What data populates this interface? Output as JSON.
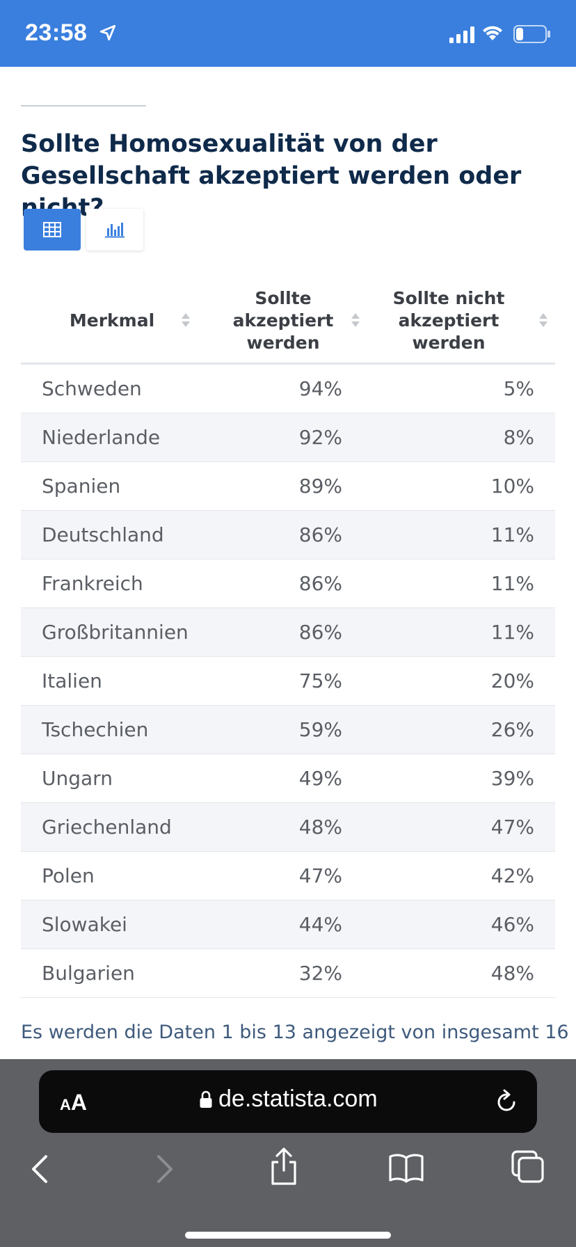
{
  "status_bar": {
    "time": "23:58",
    "battery_level": 0.25
  },
  "page": {
    "title": "Sollte Homosexualität von der Gesellschaft akzeptiert werden oder nicht?",
    "table": {
      "headers": [
        "Merkmal",
        "Sollte akzeptiert werden",
        "Sollte nicht akzeptiert werden"
      ],
      "rows": [
        {
          "name": "Schweden",
          "a": "94%",
          "b": "5%"
        },
        {
          "name": "Niederlande",
          "a": "92%",
          "b": "8%"
        },
        {
          "name": "Spanien",
          "a": "89%",
          "b": "10%"
        },
        {
          "name": "Deutschland",
          "a": "86%",
          "b": "11%"
        },
        {
          "name": "Frankreich",
          "a": "86%",
          "b": "11%"
        },
        {
          "name": "Großbritannien",
          "a": "86%",
          "b": "11%"
        },
        {
          "name": "Italien",
          "a": "75%",
          "b": "20%"
        },
        {
          "name": "Tschechien",
          "a": "59%",
          "b": "26%"
        },
        {
          "name": "Ungarn",
          "a": "49%",
          "b": "39%"
        },
        {
          "name": "Griechenland",
          "a": "48%",
          "b": "47%"
        },
        {
          "name": "Polen",
          "a": "47%",
          "b": "42%"
        },
        {
          "name": "Slowakei",
          "a": "44%",
          "b": "46%"
        },
        {
          "name": "Bulgarien",
          "a": "32%",
          "b": "48%"
        }
      ]
    },
    "footer_note": "Es werden die Daten 1 bis 13 angezeigt von insgesamt 16"
  },
  "browser": {
    "aa_label_small": "A",
    "aa_label_large": "A",
    "url": "de.statista.com"
  },
  "colors": {
    "accent": "#3a7fde",
    "title": "#0f2a4a",
    "row_alt": "#f4f5f9"
  },
  "icons": [
    "location-arrow-icon",
    "signal-icon",
    "wifi-icon",
    "battery-icon",
    "table-view-icon",
    "bar-chart-icon",
    "sort-icon",
    "lock-icon",
    "reload-icon",
    "back-icon",
    "forward-icon",
    "share-icon",
    "bookmarks-icon",
    "tabs-icon"
  ]
}
